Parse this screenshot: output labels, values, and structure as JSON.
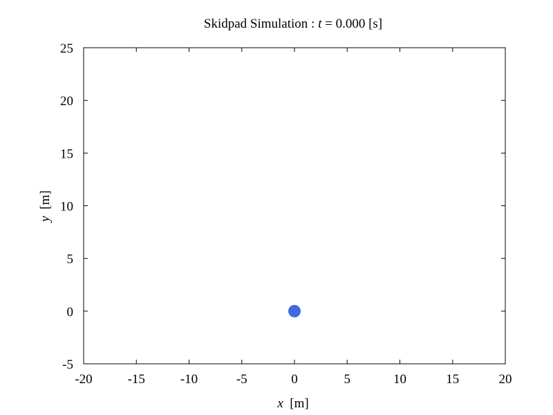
{
  "chart_data": {
    "type": "scatter",
    "title": {
      "prefix": "Skidpad Simulation : ",
      "var": "t",
      "suffix": " = 0.000 [s]"
    },
    "xlabel": {
      "var": "x",
      "unit": "  [m]"
    },
    "ylabel": {
      "var": "y",
      "unit": "  [m]"
    },
    "xlim": [
      -20,
      20
    ],
    "ylim": [
      -5,
      25
    ],
    "xticks": [
      -20,
      -15,
      -10,
      -5,
      0,
      5,
      10,
      15,
      20
    ],
    "yticks": [
      -5,
      0,
      5,
      10,
      15,
      20,
      25
    ],
    "grid": false,
    "series": [
      {
        "x": [
          0
        ],
        "y": [
          0
        ],
        "color": "#4169e1"
      }
    ]
  }
}
